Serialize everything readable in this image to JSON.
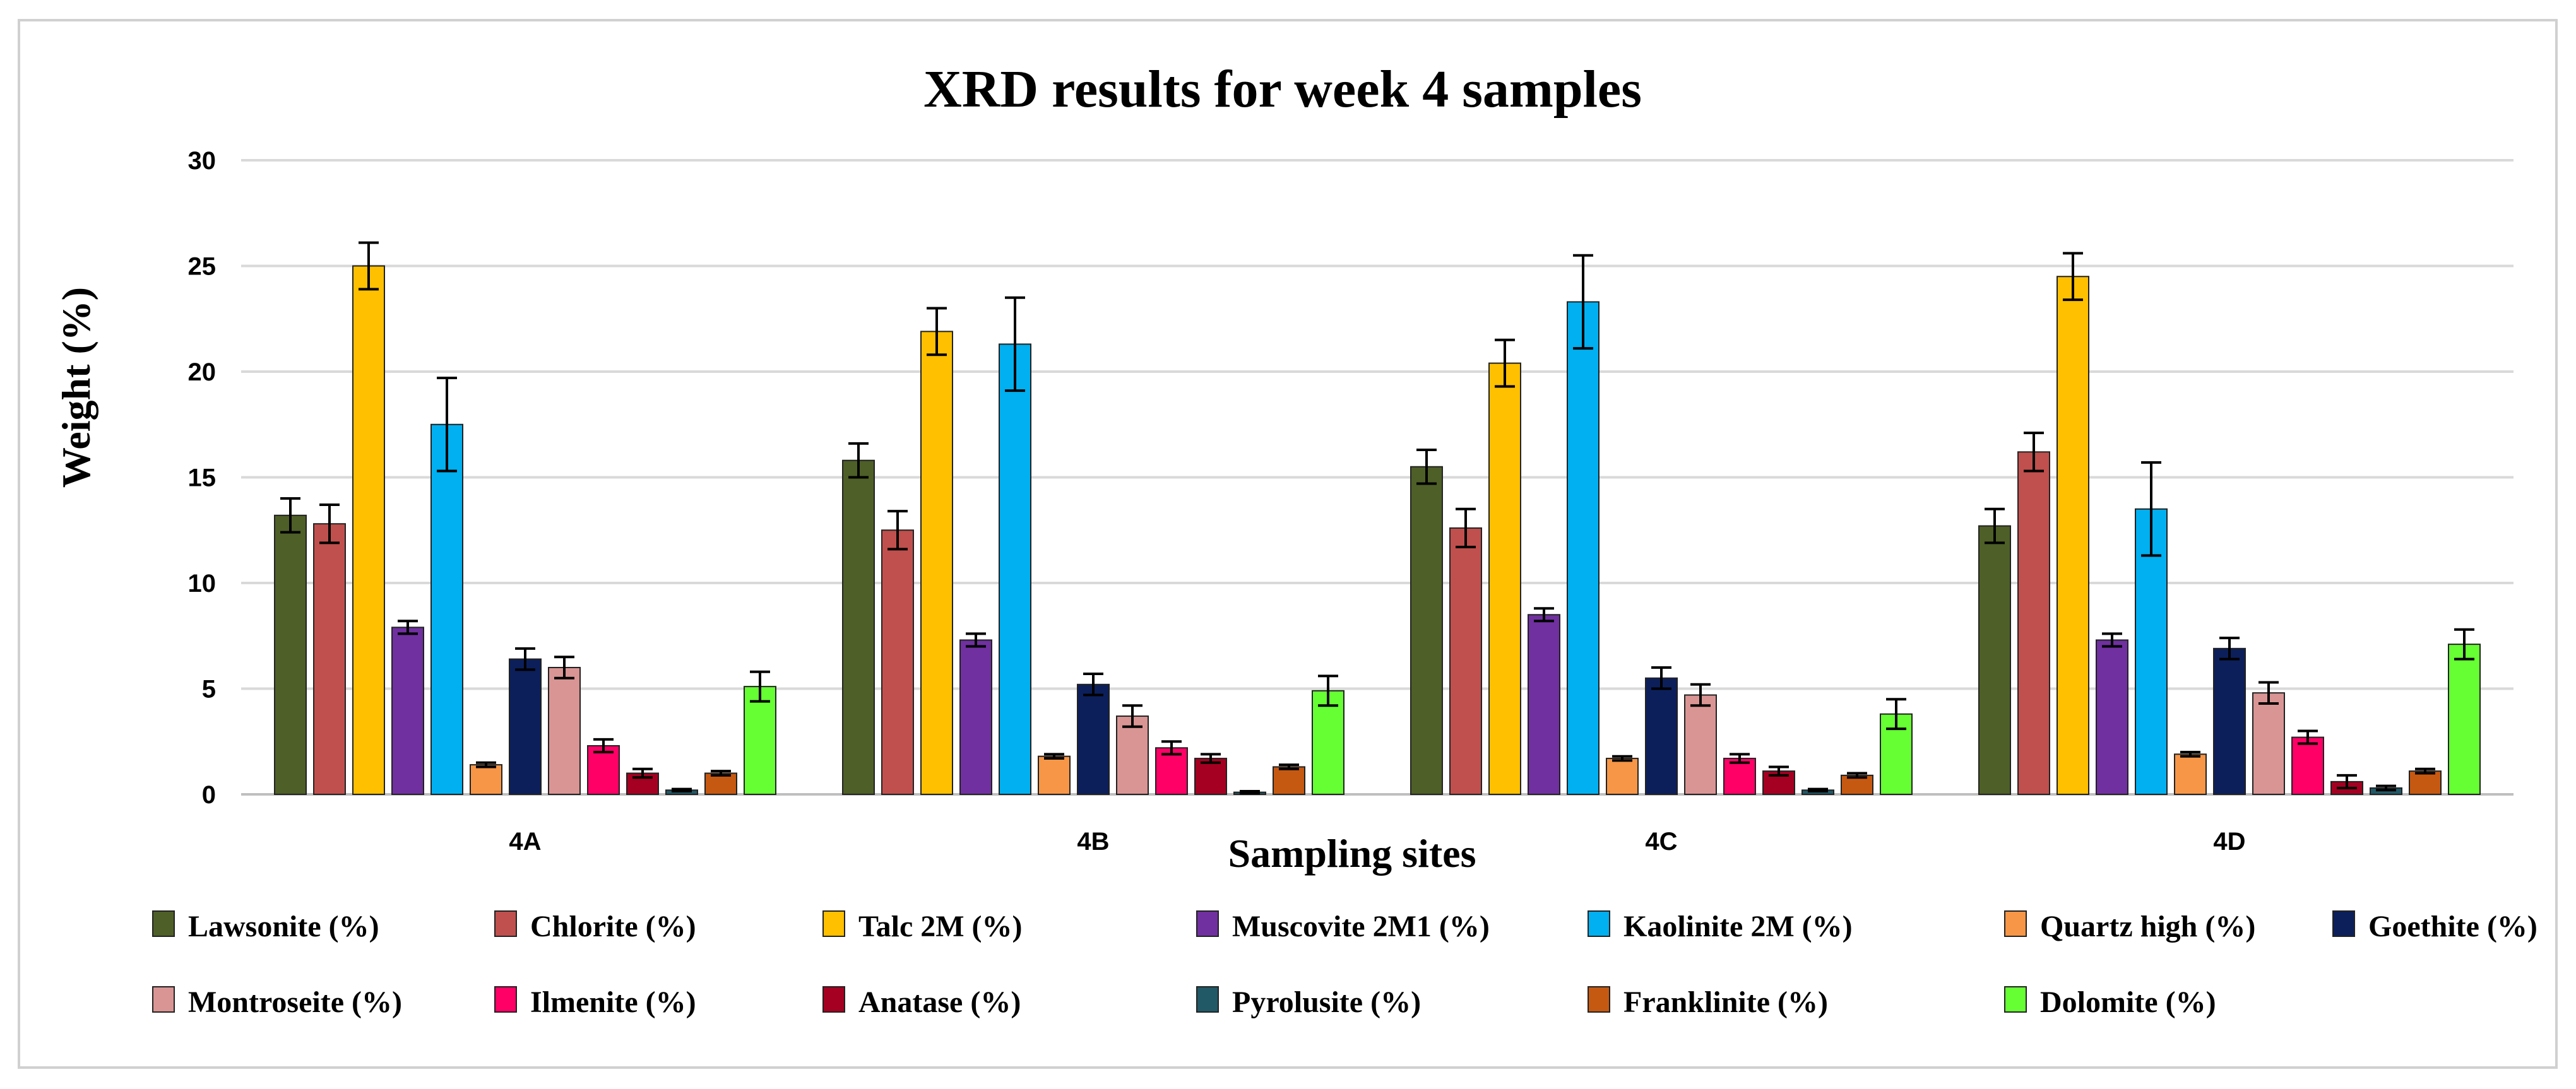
{
  "chart_data": {
    "type": "bar",
    "title": "XRD results for week 4 samples",
    "xlabel": "Sampling sites",
    "ylabel": "Weight (%)",
    "ylim": [
      0,
      30
    ],
    "yticks": [
      0,
      5,
      10,
      15,
      20,
      25,
      30
    ],
    "grid": true,
    "legend_position": "bottom",
    "categories": [
      "4A",
      "4B",
      "4C",
      "4D"
    ],
    "series": [
      {
        "name": "Lawsonite (%)",
        "color": "#4e5f27",
        "values": [
          13.2,
          15.8,
          15.5,
          12.7
        ],
        "errors": [
          0.8,
          0.8,
          0.8,
          0.8
        ]
      },
      {
        "name": "Chlorite (%)",
        "color": "#c0504d",
        "values": [
          12.8,
          12.5,
          12.6,
          16.2
        ],
        "errors": [
          0.9,
          0.9,
          0.9,
          0.9
        ]
      },
      {
        "name": "Talc 2M (%)",
        "color": "#ffc000",
        "values": [
          25.0,
          21.9,
          20.4,
          24.5
        ],
        "errors": [
          1.1,
          1.1,
          1.1,
          1.1
        ]
      },
      {
        "name": "Muscovite 2M1 (%)",
        "color": "#7030a0",
        "values": [
          7.9,
          7.3,
          8.5,
          7.3
        ],
        "errors": [
          0.3,
          0.3,
          0.3,
          0.3
        ]
      },
      {
        "name": "Kaolinite 2M (%)",
        "color": "#00b0f0",
        "values": [
          17.5,
          21.3,
          23.3,
          13.5
        ],
        "errors": [
          2.2,
          2.2,
          2.2,
          2.2
        ]
      },
      {
        "name": "Quartz high (%)",
        "color": "#f79646",
        "values": [
          1.4,
          1.8,
          1.7,
          1.9
        ],
        "errors": [
          0.1,
          0.1,
          0.1,
          0.1
        ]
      },
      {
        "name": "Goethite (%)",
        "color": "#0c1f5b",
        "values": [
          6.4,
          5.2,
          5.5,
          6.9
        ],
        "errors": [
          0.5,
          0.5,
          0.5,
          0.5
        ]
      },
      {
        "name": "Montroseite (%)",
        "color": "#d99594",
        "values": [
          6.0,
          3.7,
          4.7,
          4.8
        ],
        "errors": [
          0.5,
          0.5,
          0.5,
          0.5
        ]
      },
      {
        "name": "Ilmenite (%)",
        "color": "#ff0066",
        "values": [
          2.3,
          2.2,
          1.7,
          2.7
        ],
        "errors": [
          0.3,
          0.3,
          0.2,
          0.3
        ]
      },
      {
        "name": "Anatase (%)",
        "color": "#a50021",
        "values": [
          1.0,
          1.7,
          1.1,
          0.6
        ],
        "errors": [
          0.2,
          0.2,
          0.2,
          0.3
        ]
      },
      {
        "name": "Pyrolusite (%)",
        "color": "#215967",
        "values": [
          0.2,
          0.1,
          0.2,
          0.3
        ],
        "errors": [
          0.05,
          0.05,
          0.05,
          0.1
        ]
      },
      {
        "name": "Franklinite (%)",
        "color": "#c65911",
        "values": [
          1.0,
          1.3,
          0.9,
          1.1
        ],
        "errors": [
          0.1,
          0.1,
          0.1,
          0.1
        ]
      },
      {
        "name": "Dolomite (%)",
        "color": "#66ff33",
        "values": [
          5.1,
          4.9,
          3.8,
          7.1
        ],
        "errors": [
          0.7,
          0.7,
          0.7,
          0.7
        ]
      }
    ]
  }
}
